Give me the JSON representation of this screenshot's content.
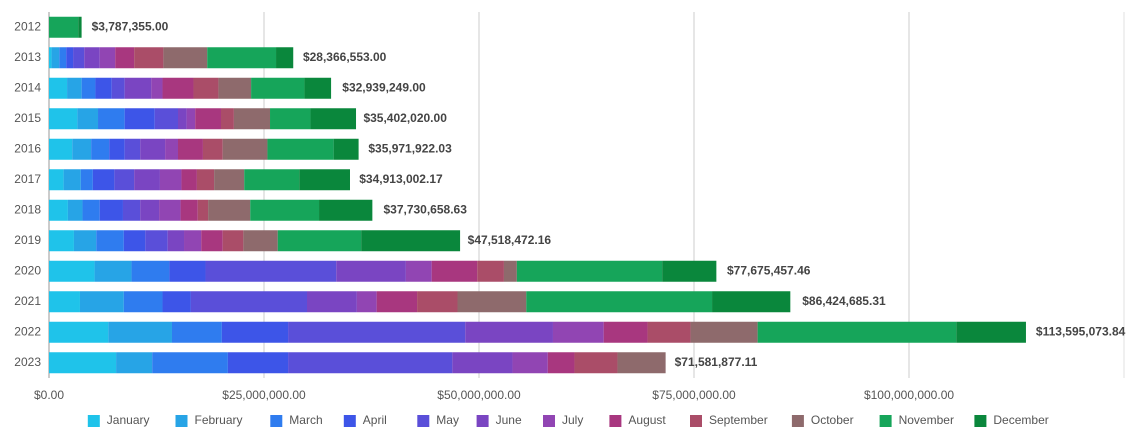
{
  "chart_data": {
    "type": "stacked_hbar",
    "categories": [
      "2012",
      "2013",
      "2014",
      "2015",
      "2016",
      "2017",
      "2018",
      "2019",
      "2020",
      "2021",
      "2022",
      "2023"
    ],
    "series": [
      {
        "name": "January",
        "color": "#1fc3ea",
        "values": [
          0,
          300000,
          2100000,
          3300000,
          2700000,
          1700000,
          2200000,
          2900000,
          5300000,
          3600000,
          6900000,
          7800000
        ]
      },
      {
        "name": "February",
        "color": "#27a4e6",
        "values": [
          0,
          900000,
          1700000,
          2400000,
          2200000,
          2000000,
          1700000,
          2600000,
          4300000,
          5100000,
          7400000,
          4200000
        ]
      },
      {
        "name": "March",
        "color": "#2f7cef",
        "values": [
          0,
          800000,
          1600000,
          3100000,
          2100000,
          1400000,
          2000000,
          3200000,
          4400000,
          4500000,
          5800000,
          8800000
        ]
      },
      {
        "name": "April",
        "color": "#3d55e8",
        "values": [
          0,
          800000,
          1900000,
          3500000,
          1800000,
          2500000,
          2700000,
          2500000,
          4200000,
          3300000,
          7700000,
          7000000
        ]
      },
      {
        "name": "May",
        "color": "#5a4fd9",
        "values": [
          0,
          1300000,
          1500000,
          2700000,
          1800000,
          2300000,
          2000000,
          2600000,
          15200000,
          13500000,
          20600000,
          19100000
        ]
      },
      {
        "name": "June",
        "color": "#7a45c2",
        "values": [
          0,
          1800000,
          3100000,
          1000000,
          2900000,
          3000000,
          2200000,
          1900000,
          8100000,
          5800000,
          10200000,
          7000000
        ]
      },
      {
        "name": "July",
        "color": "#9145b3",
        "values": [
          0,
          1800000,
          1300000,
          1000000,
          1500000,
          2500000,
          2500000,
          2000000,
          3000000,
          2300000,
          5900000,
          4100000
        ]
      },
      {
        "name": "August",
        "color": "#a8377f",
        "values": [
          0,
          2200000,
          3600000,
          3000000,
          2900000,
          1800000,
          2000000,
          2500000,
          5300000,
          4700000,
          5100000,
          3100000
        ]
      },
      {
        "name": "September",
        "color": "#aa4d68",
        "values": [
          0,
          3400000,
          2900000,
          1500000,
          2300000,
          2000000,
          1200000,
          2400000,
          3100000,
          4700000,
          5000000,
          5000000
        ]
      },
      {
        "name": "October",
        "color": "#8e6a6c",
        "values": [
          0,
          5100000,
          3800000,
          4200000,
          5200000,
          3500000,
          4900000,
          4000000,
          1500000,
          8000000,
          7800000,
          5600000
        ]
      },
      {
        "name": "November",
        "color": "#16a55a",
        "values": [
          3400000,
          8000000,
          6200000,
          4700000,
          7700000,
          6400000,
          8000000,
          9700000,
          16900000,
          21600000,
          23100000,
          0
        ]
      },
      {
        "name": "December",
        "color": "#0a873c",
        "values": [
          390000,
          2000000,
          3100000,
          5300000,
          2900000,
          5900000,
          6200000,
          11500000,
          6300000,
          9100000,
          8100000,
          0
        ]
      }
    ],
    "totals": [
      3787355.0,
      28366553.0,
      32939249.0,
      35402020.0,
      35971922.03,
      34913002.17,
      37730658.63,
      47518472.16,
      77675457.46,
      86424685.31,
      113595073.84,
      71581877.11
    ],
    "total_labels": [
      "$3,787,355.00",
      "$28,366,553.00",
      "$32,939,249.00",
      "$35,402,020.00",
      "$35,971,922.03",
      "$34,913,002.17",
      "$37,730,658.63",
      "$47,518,472.16",
      "$77,675,457.46",
      "$86,424,685.31",
      "$113,595,073.84",
      "$71,581,877.11"
    ],
    "xlim": [
      0,
      125000000
    ],
    "xticks": [
      {
        "value": 0,
        "label": "$0.00"
      },
      {
        "value": 25000000,
        "label": "$25,000,000.00"
      },
      {
        "value": 50000000,
        "label": "$50,000,000.00"
      },
      {
        "value": 75000000,
        "label": "$75,000,000.00"
      },
      {
        "value": 100000000,
        "label": "$100,000,000.00"
      }
    ],
    "grid": true,
    "legend": "bottom"
  }
}
